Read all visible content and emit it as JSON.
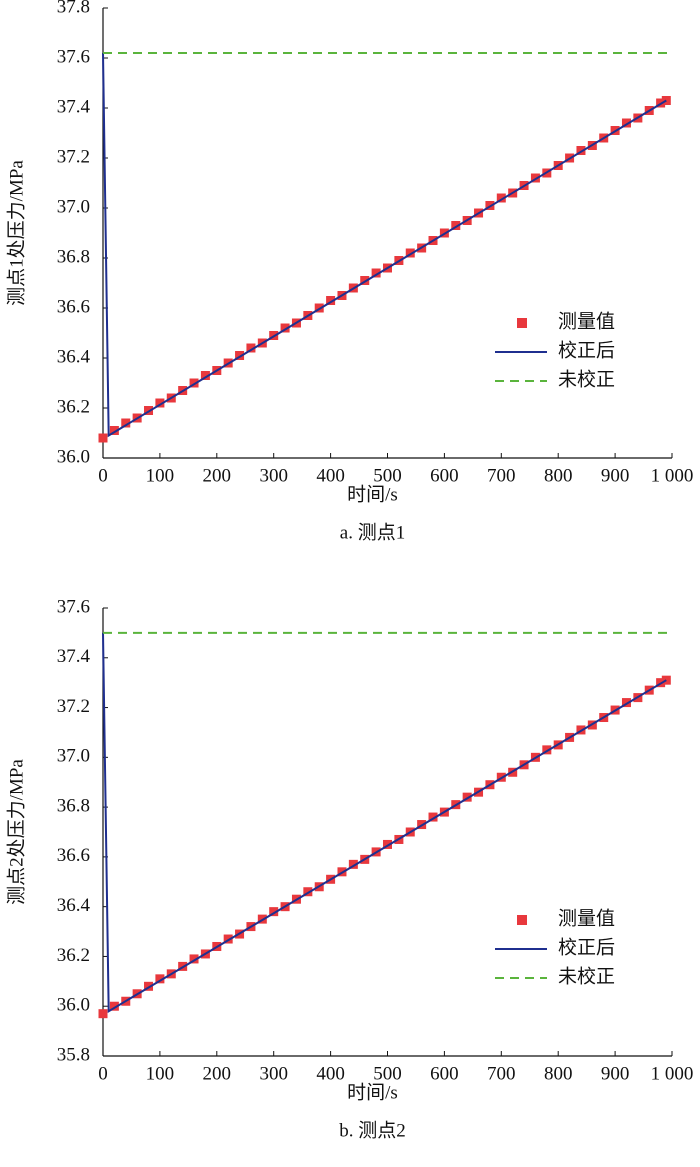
{
  "chart_data": [
    {
      "type": "line",
      "title": "a. 测点1",
      "xlabel": "时间/s",
      "ylabel": "测点1处压力/MPa",
      "xlim": [
        0,
        1000
      ],
      "xticks": [
        0,
        100,
        200,
        300,
        400,
        500,
        600,
        700,
        800,
        900,
        {
          "value": 1000,
          "label": "1 000"
        }
      ],
      "ylim": [
        36.0,
        37.8
      ],
      "yticks": [
        {
          "value": 36.0,
          "label": "36.0"
        },
        36.2,
        36.4,
        36.6,
        36.8,
        {
          "value": 37.0,
          "label": "37.0"
        },
        37.2,
        37.4,
        37.6,
        37.8
      ],
      "legend": "right",
      "series": [
        {
          "name": "测量值",
          "color": "#e8383d",
          "marker": "square",
          "x": [
            0,
            20,
            40,
            60,
            80,
            100,
            120,
            140,
            160,
            180,
            200,
            220,
            240,
            260,
            280,
            300,
            320,
            340,
            360,
            380,
            400,
            420,
            440,
            460,
            480,
            500,
            520,
            540,
            560,
            580,
            600,
            620,
            640,
            660,
            680,
            700,
            720,
            740,
            760,
            780,
            800,
            820,
            840,
            860,
            880,
            900,
            920,
            940,
            960,
            980,
            990
          ],
          "values": [
            36.08,
            36.11,
            36.14,
            36.16,
            36.19,
            36.22,
            36.24,
            36.27,
            36.3,
            36.33,
            36.35,
            36.38,
            36.41,
            36.44,
            36.46,
            36.49,
            36.52,
            36.54,
            36.57,
            36.6,
            36.63,
            36.65,
            36.68,
            36.71,
            36.74,
            36.76,
            36.79,
            36.82,
            36.84,
            36.87,
            36.9,
            36.93,
            36.95,
            36.98,
            37.01,
            37.04,
            37.06,
            37.09,
            37.12,
            37.14,
            37.17,
            37.2,
            37.23,
            37.25,
            37.28,
            37.31,
            37.34,
            37.36,
            37.39,
            37.42,
            37.43
          ]
        },
        {
          "name": "校正后",
          "color": "#1f2f8f",
          "linestyle": "solid",
          "x": [
            0,
            10,
            990
          ],
          "values": [
            37.62,
            36.09,
            37.43
          ]
        },
        {
          "name": "未校正",
          "color": "#5ab43c",
          "linestyle": "dashed",
          "x": [
            0,
            1000
          ],
          "values": [
            37.62,
            37.62
          ]
        }
      ]
    },
    {
      "type": "line",
      "title": "b. 测点2",
      "xlabel": "时间/s",
      "ylabel": "测点2处压力/MPa",
      "xlim": [
        0,
        1000
      ],
      "xticks": [
        0,
        100,
        200,
        300,
        400,
        500,
        600,
        700,
        800,
        900,
        {
          "value": 1000,
          "label": "1 000"
        }
      ],
      "ylim": [
        35.8,
        37.6
      ],
      "yticks": [
        35.8,
        {
          "value": 36.0,
          "label": "36.0"
        },
        36.2,
        36.4,
        36.6,
        36.8,
        {
          "value": 37.0,
          "label": "37.0"
        },
        37.2,
        37.4,
        37.6
      ],
      "legend": "right",
      "series": [
        {
          "name": "测量值",
          "color": "#e8383d",
          "marker": "square",
          "x": [
            0,
            20,
            40,
            60,
            80,
            100,
            120,
            140,
            160,
            180,
            200,
            220,
            240,
            260,
            280,
            300,
            320,
            340,
            360,
            380,
            400,
            420,
            440,
            460,
            480,
            500,
            520,
            540,
            560,
            580,
            600,
            620,
            640,
            660,
            680,
            700,
            720,
            740,
            760,
            780,
            800,
            820,
            840,
            860,
            880,
            900,
            920,
            940,
            960,
            980,
            990
          ],
          "values": [
            35.97,
            36.0,
            36.02,
            36.05,
            36.08,
            36.11,
            36.13,
            36.16,
            36.19,
            36.21,
            36.24,
            36.27,
            36.29,
            36.32,
            36.35,
            36.38,
            36.4,
            36.43,
            36.46,
            36.48,
            36.51,
            36.54,
            36.57,
            36.59,
            36.62,
            36.65,
            36.67,
            36.7,
            36.73,
            36.76,
            36.78,
            36.81,
            36.84,
            36.86,
            36.89,
            36.92,
            36.94,
            36.97,
            37.0,
            37.03,
            37.05,
            37.08,
            37.11,
            37.13,
            37.16,
            37.19,
            37.22,
            37.24,
            37.27,
            37.3,
            37.31
          ]
        },
        {
          "name": "校正后",
          "color": "#1f2f8f",
          "linestyle": "solid",
          "x": [
            0,
            10,
            990
          ],
          "values": [
            37.5,
            35.98,
            37.31
          ]
        },
        {
          "name": "未校正",
          "color": "#5ab43c",
          "linestyle": "dashed",
          "x": [
            0,
            1000
          ],
          "values": [
            37.5,
            37.5
          ]
        }
      ]
    }
  ]
}
